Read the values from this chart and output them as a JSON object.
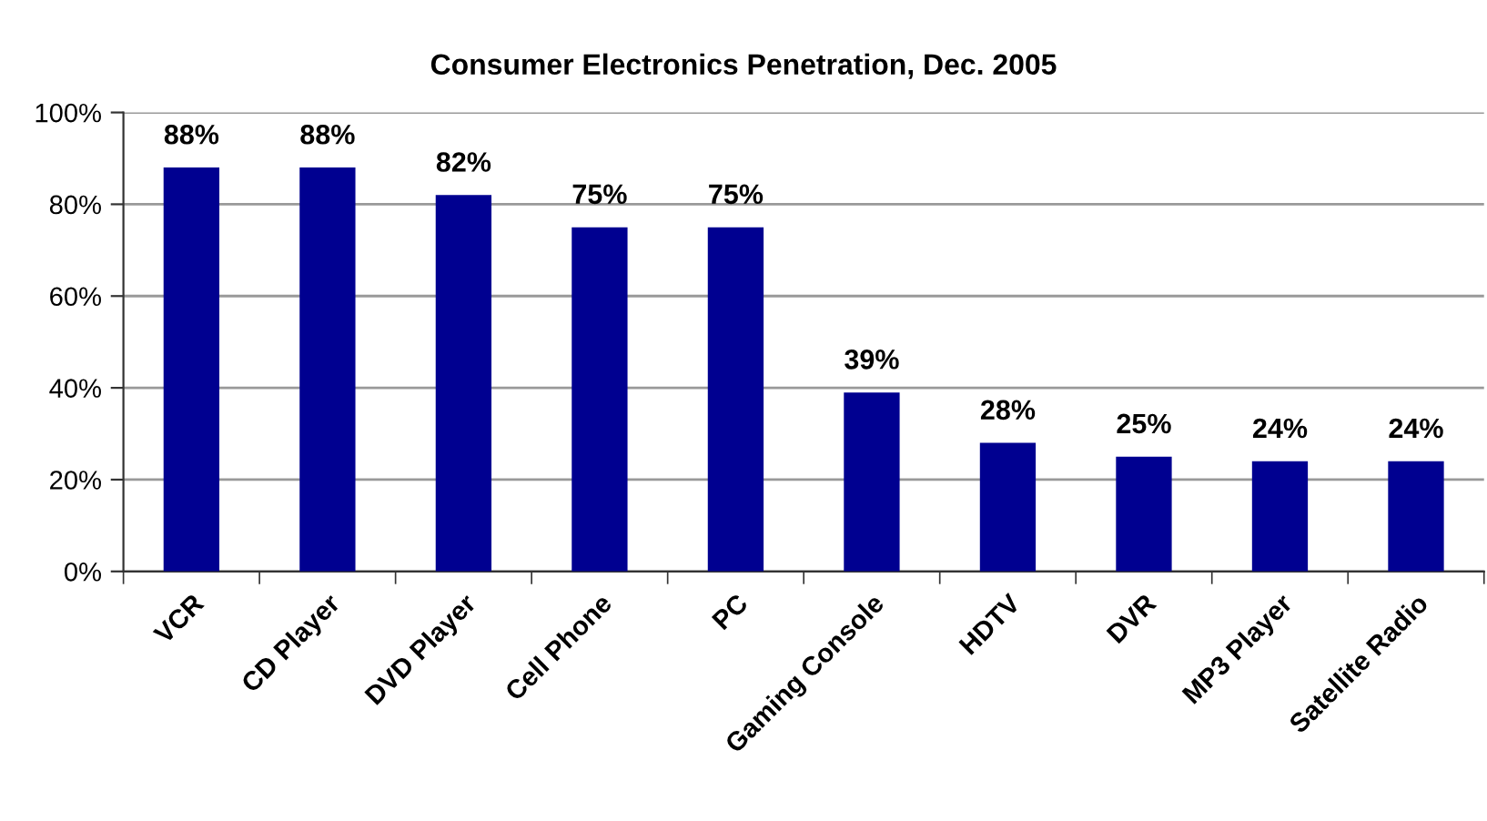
{
  "chart_data": {
    "type": "bar",
    "title": "Consumer Electronics Penetration, Dec. 2005",
    "categories": [
      "VCR",
      "CD Player",
      "DVD Player",
      "Cell Phone",
      "PC",
      "Gaming Console",
      "HDTV",
      "DVR",
      "MP3 Player",
      "Satellite Radio"
    ],
    "values": [
      88,
      88,
      82,
      75,
      75,
      39,
      28,
      25,
      24,
      24
    ],
    "value_labels": [
      "88%",
      "88%",
      "82%",
      "75%",
      "75%",
      "39%",
      "28%",
      "25%",
      "24%",
      "24%"
    ],
    "color": "#000090",
    "ylim": [
      0,
      100
    ],
    "yticks": [
      {
        "value": 0,
        "label": "0%"
      },
      {
        "value": 20,
        "label": "20%"
      },
      {
        "value": 40,
        "label": "40%"
      },
      {
        "value": 60,
        "label": "60%"
      },
      {
        "value": 80,
        "label": "80%"
      },
      {
        "value": 100,
        "label": "100%"
      }
    ],
    "grid": "y",
    "legend": false
  }
}
